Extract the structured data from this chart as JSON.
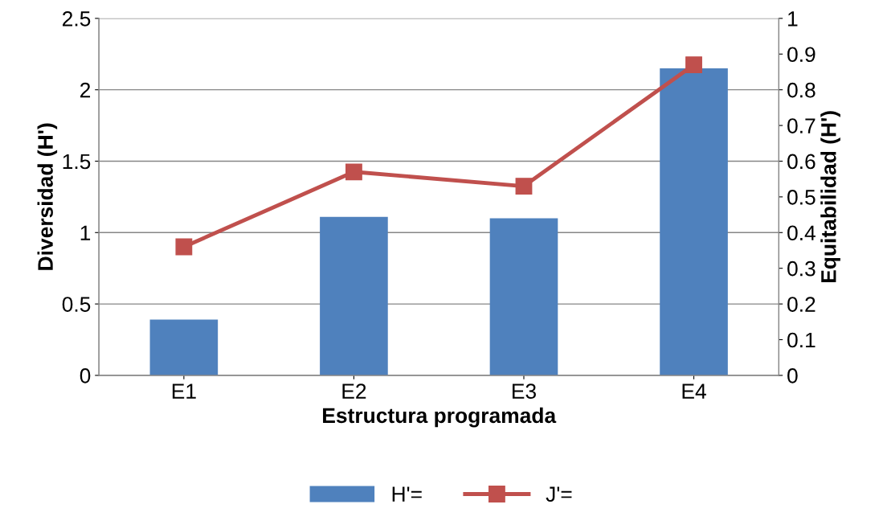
{
  "chart_data": {
    "type": "bar",
    "xlabel": "Estructura programada",
    "ylabel": "Diversidad (H')",
    "y2label": "Equitabilidad (H')",
    "categories": [
      "E1",
      "E2",
      "E3",
      "E4"
    ],
    "series": [
      {
        "name": "H'=",
        "color": "#4f81bd",
        "values": [
          0.39,
          1.11,
          1.1,
          2.15
        ]
      },
      {
        "name": "J'=",
        "type": "line",
        "axis": "y2",
        "color": "#c0504d",
        "marker": "square",
        "values": [
          0.36,
          0.57,
          0.53,
          0.87
        ]
      }
    ],
    "ylim": [
      0,
      2.5
    ],
    "yticks": [
      0,
      0.5,
      1,
      1.5,
      2,
      2.5
    ],
    "y2lim": [
      0,
      1
    ],
    "y2ticks": [
      0,
      0.1,
      0.2,
      0.3,
      0.4,
      0.5,
      0.6,
      0.7,
      0.8,
      0.9,
      1
    ],
    "grid": "y",
    "legend": "bottom"
  }
}
